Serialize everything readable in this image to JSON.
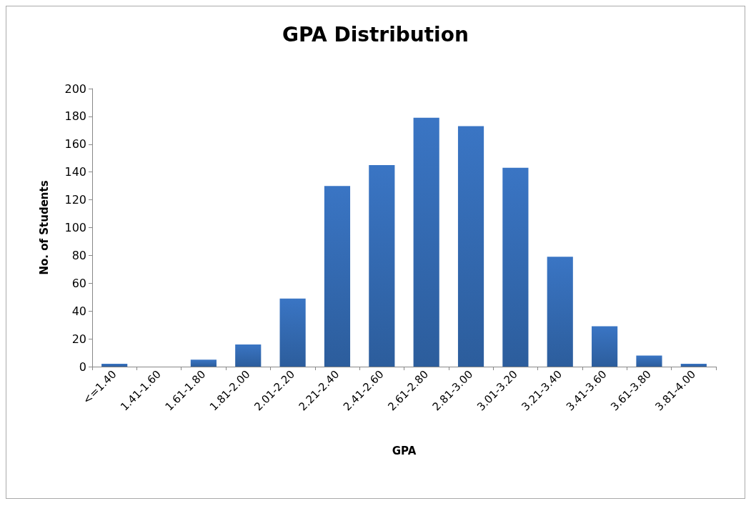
{
  "chart_data": {
    "type": "bar",
    "title": "GPA Distribution",
    "xlabel": "GPA",
    "ylabel": "No. of Students",
    "categories": [
      "<=1.40",
      "1.41-1.60",
      "1.61-1.80",
      "1.81-2.00",
      "2.01-2.20",
      "2.21-2.40",
      "2.41-2.60",
      "2.61-2.80",
      "2.81-3.00",
      "3.01-3.20",
      "3.21-3.40",
      "3.41-3.60",
      "3.61-3.80",
      "3.81-4.00"
    ],
    "values": [
      2,
      0,
      5,
      16,
      49,
      130,
      145,
      179,
      173,
      143,
      79,
      29,
      8,
      2
    ],
    "color": "#3a75c4",
    "ylim": [
      0,
      200
    ],
    "yticks": [
      0,
      20,
      40,
      60,
      80,
      100,
      120,
      140,
      160,
      180,
      200
    ]
  }
}
